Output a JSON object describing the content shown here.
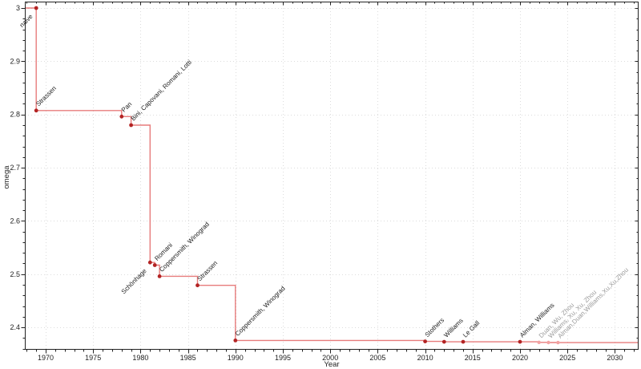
{
  "chart_data": {
    "type": "line",
    "subtype": "step-post",
    "title": "",
    "xlabel": "Year",
    "ylabel": "omega",
    "xlim": [
      1967.8,
      2032.5
    ],
    "ylim": [
      2.358,
      3.012
    ],
    "grid": "dotted-major",
    "legend": "none",
    "x_ticks": [
      {
        "v": 1970,
        "label": "1970"
      },
      {
        "v": 1975,
        "label": "1975"
      },
      {
        "v": 1980,
        "label": "1980"
      },
      {
        "v": 1985,
        "label": "1985"
      },
      {
        "v": 1990,
        "label": "1990"
      },
      {
        "v": 1995,
        "label": "1995"
      },
      {
        "v": 2000,
        "label": "2000"
      },
      {
        "v": 2005,
        "label": "2005"
      },
      {
        "v": 2010,
        "label": "2010"
      },
      {
        "v": 2015,
        "label": "2015"
      },
      {
        "v": 2020,
        "label": "2020"
      },
      {
        "v": 2025,
        "label": "2025"
      },
      {
        "v": 2030,
        "label": "2030"
      }
    ],
    "y_ticks": [
      {
        "v": 2.4,
        "label": "2.4"
      },
      {
        "v": 2.5,
        "label": "2.5"
      },
      {
        "v": 2.6,
        "label": "2.6"
      },
      {
        "v": 2.7,
        "label": "2.7"
      },
      {
        "v": 2.8,
        "label": "2.8"
      },
      {
        "v": 2.9,
        "label": "2.9"
      },
      {
        "v": 3.0,
        "label": "3"
      }
    ],
    "x_minor_step": 1,
    "y_minor_step": 0.02,
    "points": [
      {
        "year": 1969,
        "omega": 3.0,
        "label": "naive",
        "label_side": "below",
        "recent": false
      },
      {
        "year": 1969,
        "omega": 2.8074,
        "label": "Strassen",
        "label_side": "above",
        "recent": false
      },
      {
        "year": 1978,
        "omega": 2.796,
        "label": "Pan",
        "label_side": "above",
        "recent": false
      },
      {
        "year": 1979,
        "omega": 2.78,
        "label": "Bini, Capovani, Romani, Lotti",
        "label_side": "above",
        "recent": false
      },
      {
        "year": 1981,
        "omega": 2.522,
        "label": "Schönhage",
        "label_side": "below",
        "recent": false
      },
      {
        "year": 1981.5,
        "omega": 2.517,
        "label": "Romani",
        "label_side": "above",
        "recent": false
      },
      {
        "year": 1982,
        "omega": 2.496,
        "label": "Coppersmith, Winograd",
        "label_side": "above",
        "recent": false
      },
      {
        "year": 1986,
        "omega": 2.479,
        "label": "Strassen",
        "label_side": "above",
        "recent": false
      },
      {
        "year": 1990,
        "omega": 2.3755,
        "label": "Coppersmith, Winograd",
        "label_side": "above",
        "recent": false
      },
      {
        "year": 2010,
        "omega": 2.3737,
        "label": "Stothers",
        "label_side": "above",
        "recent": false
      },
      {
        "year": 2012,
        "omega": 2.3729,
        "label": "Williams",
        "label_side": "above",
        "recent": false
      },
      {
        "year": 2014,
        "omega": 2.3728639,
        "label": "Le Gall",
        "label_side": "above",
        "recent": false
      },
      {
        "year": 2020,
        "omega": 2.3728596,
        "label": "Alman, Williams",
        "label_side": "above",
        "recent": false
      },
      {
        "year": 2022,
        "omega": 2.371866,
        "label": "Duan, Wu, Zhou",
        "label_side": "above",
        "recent": true
      },
      {
        "year": 2023,
        "omega": 2.371552,
        "label": "Williams, Xu, Xu, Zhou",
        "label_side": "above",
        "recent": true
      },
      {
        "year": 2024,
        "omega": 2.371339,
        "label": "Alman,Duan,Williams,Xu,Xu,Zhou",
        "label_side": "above",
        "recent": true
      }
    ],
    "colors": {
      "line": "#e15b5b",
      "marker": "#b32424",
      "recent_marker": "#f2a2a2",
      "label": "#1c1c1c",
      "recent_label": "#9b9b9b",
      "grid": "#dcdcdc",
      "axis": "#222222",
      "tick_label": "#222222",
      "background": "#ffffff"
    }
  }
}
